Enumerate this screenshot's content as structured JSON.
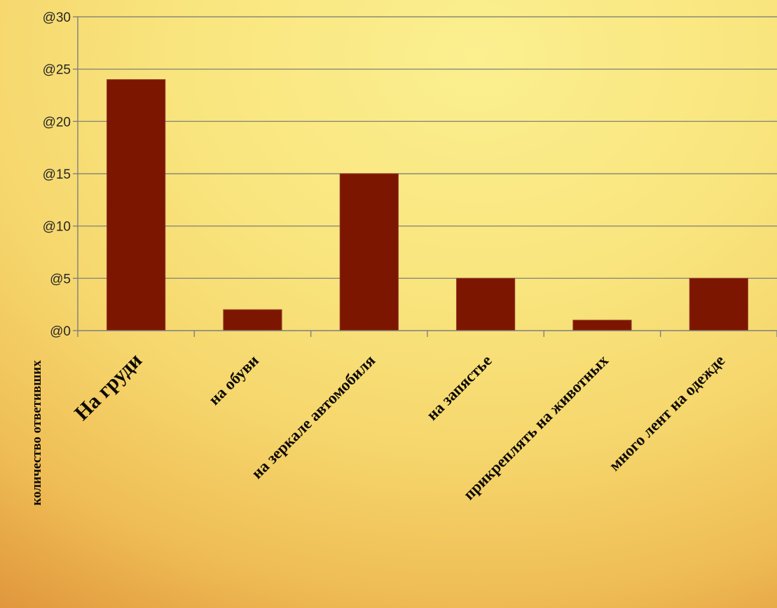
{
  "chart_data": {
    "type": "bar",
    "title": "",
    "xlabel": "",
    "ylabel": "количество ответивших",
    "categories": [
      "На груди",
      "на обуви",
      "на зеркале автомобиля",
      "на запястье",
      "прикреплять на животных",
      "много лент на одежде"
    ],
    "values": [
      24,
      2,
      15,
      5,
      1,
      5
    ],
    "ylim": [
      0,
      30
    ],
    "yticks": [
      0,
      5,
      10,
      15,
      20,
      25,
      30
    ],
    "ytick_labels": [
      "@0",
      "@5",
      "@10",
      "@15",
      "@20",
      "@25",
      "@30"
    ],
    "grid": true,
    "legend": "none",
    "colors": {
      "bar": "#7d1600",
      "bar_edge": "#8f3a2a",
      "grid": "#8a8a78",
      "axis": "#7f7f7f"
    }
  }
}
